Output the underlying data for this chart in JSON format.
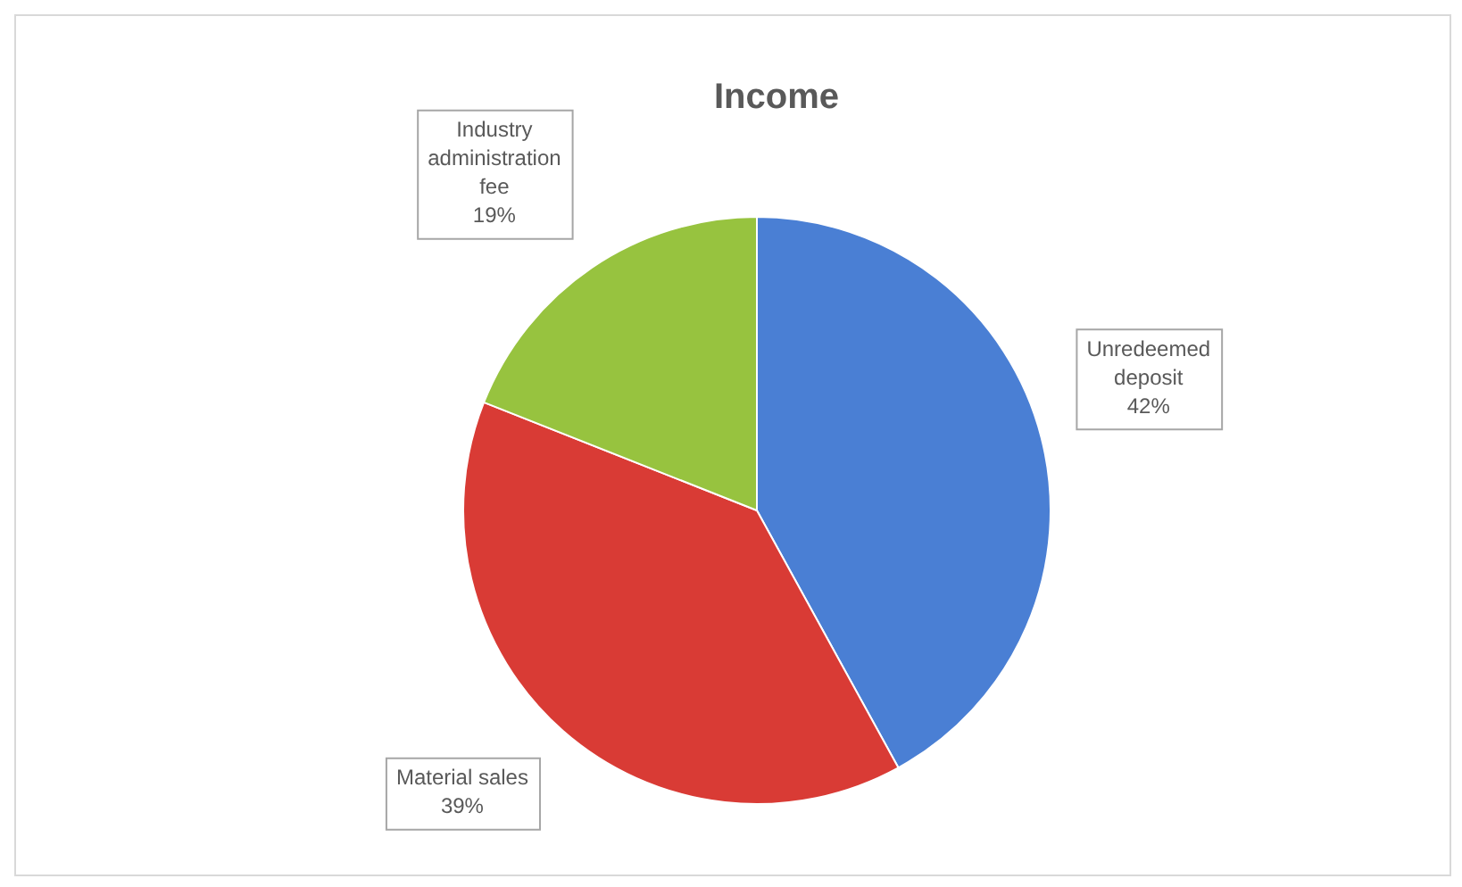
{
  "chart_data": {
    "type": "pie",
    "title": "Income",
    "categories": [
      "Unredeemed deposit",
      "Material sales",
      "Industry administration fee"
    ],
    "values": [
      42,
      39,
      19
    ],
    "colors": [
      "#4a7fd4",
      "#d93b35",
      "#97c33f"
    ],
    "value_labels": [
      "42%",
      "39%",
      "19%"
    ],
    "legend": false
  }
}
